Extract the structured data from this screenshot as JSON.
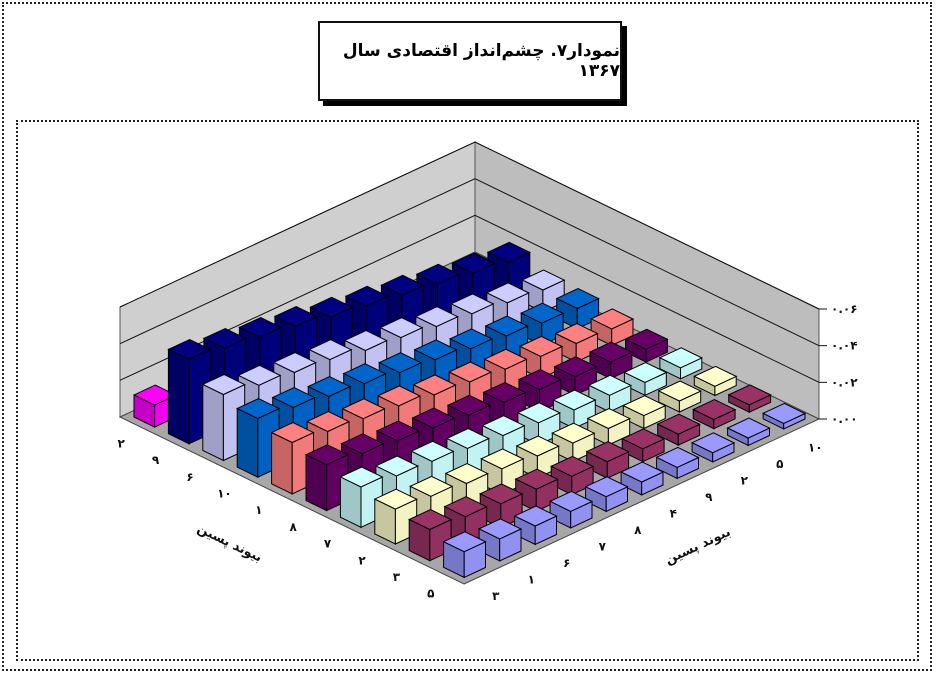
{
  "title": "نمودار۷. چشم‌انداز اقتصادی سال ۱۳۶۷",
  "chart_data": {
    "type": "bar3d",
    "title": "نمودار۷. چشم‌انداز اقتصادی سال ۱۳۶۷",
    "x_axis_label": "بیوند پسین",
    "y_axis_label": "بیوند پسین",
    "x_categories": [
      "۳",
      "۱",
      "۶",
      "۷",
      "۸",
      "۴",
      "۹",
      "۲",
      "۵",
      "۱۰"
    ],
    "y_categories": [
      "۵",
      "۳",
      "۲",
      "۷",
      "۸",
      "۱",
      "۱۰",
      "۶",
      "۹",
      "۲"
    ],
    "z_ticks": [
      "۰.۰۰",
      "۰.۰۲",
      "۰.۰۴",
      "۰.۰۶"
    ],
    "zlim": [
      0,
      0.06
    ],
    "grid": true,
    "series_colors": [
      "#9999ff",
      "#993366",
      "#ffffcc",
      "#ccffff",
      "#660066",
      "#ff8080",
      "#0066cc",
      "#ccccff",
      "#000080",
      "#ff00ff"
    ],
    "values": [
      [
        0.014,
        0.017,
        0.019,
        0.022,
        0.025,
        0.028,
        0.032,
        0.036,
        0.046,
        0.012
      ],
      [
        0.012,
        0.015,
        0.017,
        0.019,
        0.022,
        0.025,
        0.029,
        0.032,
        0.043,
        0.011
      ],
      [
        0.01,
        0.013,
        0.015,
        0.018,
        0.02,
        0.023,
        0.026,
        0.03,
        0.04,
        0.01
      ],
      [
        0.009,
        0.012,
        0.014,
        0.016,
        0.018,
        0.021,
        0.024,
        0.028,
        0.037,
        0.009
      ],
      [
        0.008,
        0.01,
        0.012,
        0.014,
        0.016,
        0.018,
        0.021,
        0.024,
        0.033,
        0.008
      ],
      [
        0.007,
        0.009,
        0.01,
        0.012,
        0.014,
        0.016,
        0.019,
        0.022,
        0.03,
        0.007
      ],
      [
        0.006,
        0.007,
        0.009,
        0.01,
        0.012,
        0.014,
        0.016,
        0.019,
        0.027,
        0.006
      ],
      [
        0.005,
        0.006,
        0.007,
        0.009,
        0.01,
        0.012,
        0.014,
        0.017,
        0.024,
        0.005
      ],
      [
        0.004,
        0.005,
        0.006,
        0.007,
        0.009,
        0.01,
        0.012,
        0.014,
        0.021,
        0.004
      ],
      [
        0.003,
        0.004,
        0.005,
        0.006,
        0.007,
        0.009,
        0.011,
        0.012,
        0.018,
        0.003
      ]
    ]
  }
}
